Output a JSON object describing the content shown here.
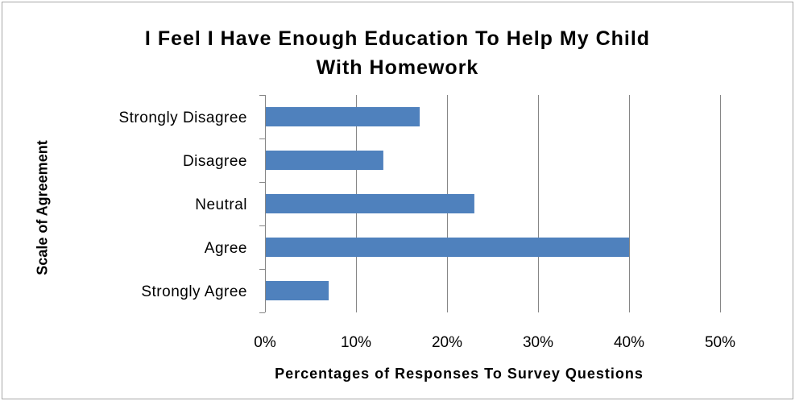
{
  "chart_data": {
    "type": "bar",
    "orientation": "horizontal",
    "title": "I Feel I Have Enough Education To Help My Child With Homework",
    "title_lines": [
      "I Feel I Have Enough Education To Help My Child",
      "With Homework"
    ],
    "xlabel": "Percentages of Responses To Survey Questions",
    "ylabel": "Scale of Agreement",
    "categories": [
      "Strongly Disagree",
      "Disagree",
      "Neutral",
      "Agree",
      "Strongly Agree"
    ],
    "values": [
      0.17,
      0.13,
      0.23,
      0.4,
      0.07
    ],
    "xlim": [
      0,
      0.5
    ],
    "xticks": [
      0,
      0.1,
      0.2,
      0.3,
      0.4,
      0.5
    ],
    "xtick_labels": [
      "0%",
      "10%",
      "20%",
      "30%",
      "40%",
      "50%"
    ],
    "grid": "vertical",
    "legend": "none",
    "bar_color": "#4f81bd",
    "grid_color": "#868686"
  }
}
